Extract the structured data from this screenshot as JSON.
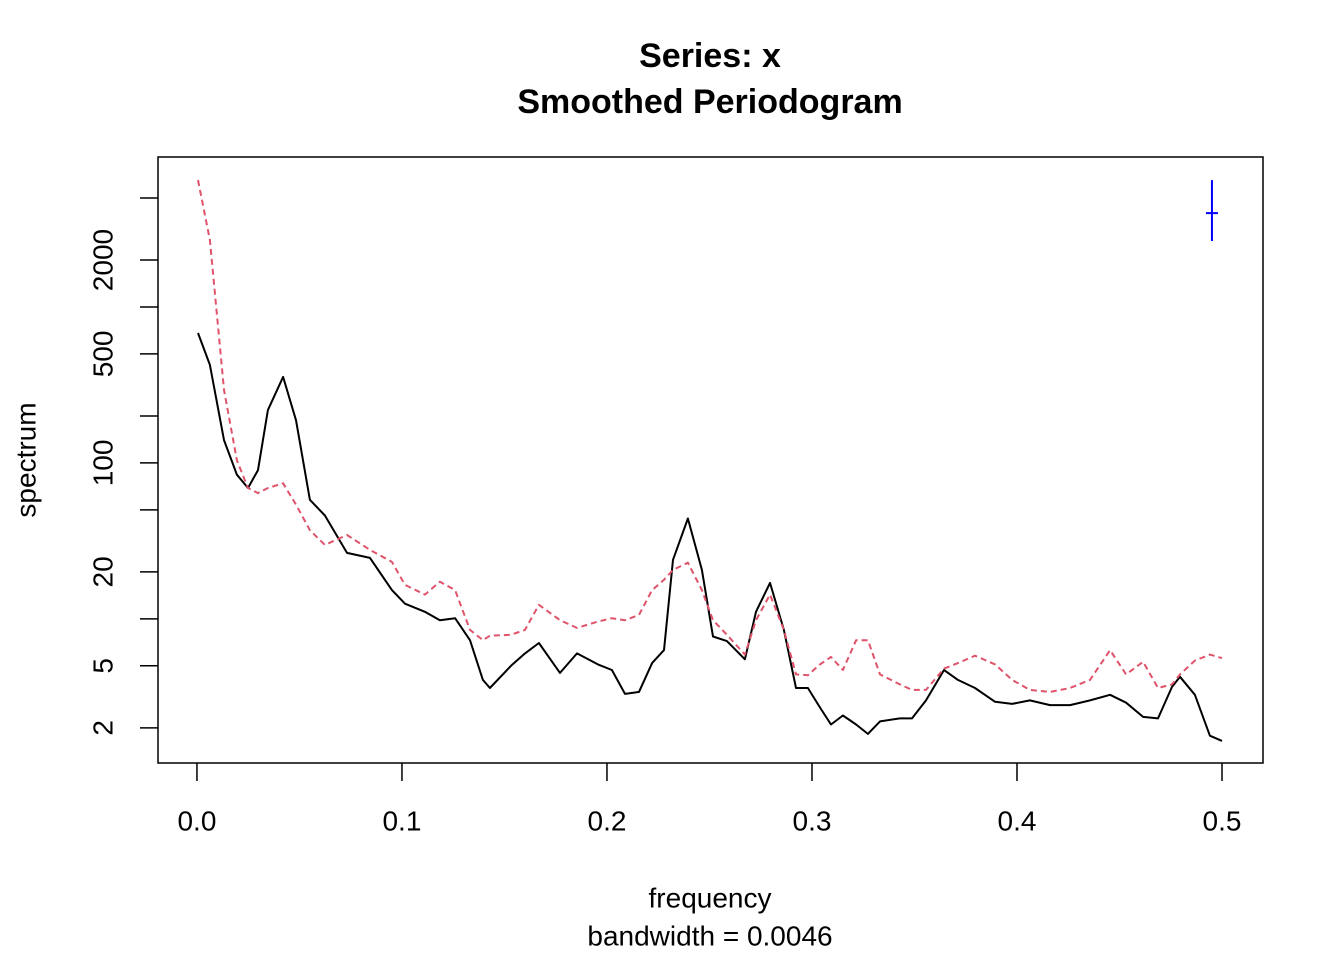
{
  "chart_data": {
    "type": "line",
    "title": "Series: x",
    "subtitle": "Smoothed Periodogram",
    "xlabel": "frequency",
    "xlabel_sub": "bandwidth = 0.0046",
    "ylabel": "spectrum",
    "log_y": true,
    "x": [
      0.0005,
      0.0063,
      0.0132,
      0.0195,
      0.0249,
      0.0298,
      0.0346,
      0.042,
      0.0483,
      0.0551,
      0.0624,
      0.0732,
      0.0844,
      0.0951,
      0.1015,
      0.1112,
      0.1185,
      0.1259,
      0.1332,
      0.1395,
      0.1429,
      0.1532,
      0.16,
      0.1668,
      0.1771,
      0.1854,
      0.1956,
      0.2024,
      0.2088,
      0.2156,
      0.222,
      0.2278,
      0.2322,
      0.2395,
      0.2463,
      0.2517,
      0.2585,
      0.2673,
      0.2727,
      0.2795,
      0.2863,
      0.2922,
      0.298,
      0.3039,
      0.3093,
      0.3151,
      0.3215,
      0.3273,
      0.3332,
      0.3429,
      0.3488,
      0.3556,
      0.3644,
      0.3712,
      0.3795,
      0.3893,
      0.3976,
      0.4063,
      0.4161,
      0.4259,
      0.4356,
      0.4454,
      0.4532,
      0.4615,
      0.4688,
      0.4756,
      0.4795,
      0.4868,
      0.4941,
      0.5
    ],
    "series": [
      {
        "color": "#000000",
        "dashed": false,
        "values": [
          681,
          425,
          140,
          84,
          69,
          90,
          218,
          356,
          188,
          58,
          46,
          26.5,
          24.6,
          15.3,
          12.5,
          11.1,
          9.8,
          10.1,
          7.3,
          4.06,
          3.6,
          5.0,
          6.0,
          7.0,
          4.5,
          6.0,
          5.1,
          4.7,
          3.3,
          3.4,
          5.2,
          6.3,
          23.9,
          44,
          20.6,
          7.7,
          7.2,
          5.5,
          11.1,
          17.0,
          8.5,
          3.6,
          3.6,
          2.7,
          2.1,
          2.4,
          2.1,
          1.83,
          2.2,
          2.3,
          2.3,
          3.0,
          4.7,
          4.06,
          3.6,
          2.94,
          2.85,
          3.0,
          2.8,
          2.8,
          3.0,
          3.26,
          2.9,
          2.35,
          2.3,
          3.66,
          4.25,
          3.26,
          1.78,
          1.65
        ]
      },
      {
        "color": "#df536b",
        "dashed": true,
        "values": [
          6510,
          2690,
          294,
          104,
          69,
          64,
          69,
          74,
          54,
          37,
          29.8,
          34.5,
          27.7,
          23.2,
          16.5,
          14.3,
          17.3,
          15.3,
          8.5,
          7.3,
          7.8,
          7.9,
          8.5,
          12.3,
          9.8,
          8.75,
          9.6,
          10.1,
          9.8,
          10.6,
          15.3,
          17.8,
          20.6,
          22.9,
          15.3,
          9.8,
          7.9,
          5.9,
          9.8,
          14.3,
          8.5,
          4.4,
          4.35,
          5.1,
          5.7,
          4.7,
          7.3,
          7.3,
          4.4,
          3.8,
          3.5,
          3.5,
          4.8,
          5.2,
          5.8,
          5.1,
          4.06,
          3.5,
          3.4,
          3.6,
          4.06,
          6.3,
          4.4,
          5.3,
          3.6,
          3.8,
          4.4,
          5.4,
          5.9,
          5.6
        ]
      }
    ],
    "confidence_interval": {
      "x": 0.4951,
      "center": 4000,
      "lower": 2650,
      "upper": 6510,
      "color": "#0000ff"
    },
    "xlim": [
      -0.019,
      0.52
    ],
    "xticks": [
      {
        "value": 0,
        "label": "0.0"
      },
      0.1,
      0.2,
      0.3,
      0.4,
      0.5
    ],
    "ylim": [
      1.19,
      9160
    ],
    "yticks": [
      2,
      5,
      20,
      100,
      500,
      2000
    ],
    "yticks_minor": [
      10,
      50,
      200,
      1000,
      5000
    ]
  }
}
